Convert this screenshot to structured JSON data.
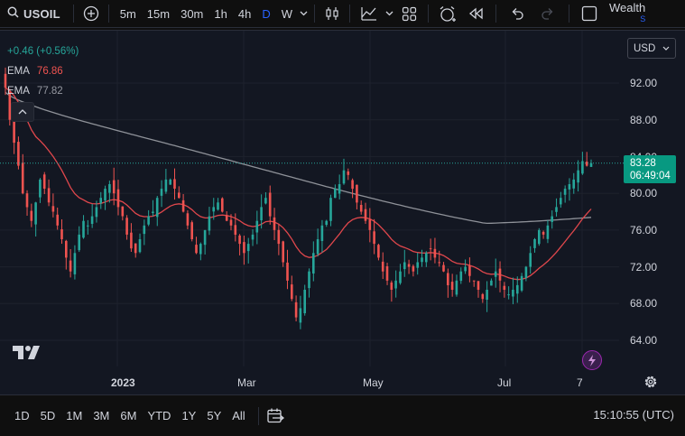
{
  "toolbar": {
    "symbol": "USOIL",
    "timeframes": [
      "5m",
      "15m",
      "30m",
      "1h",
      "4h",
      "D",
      "W"
    ],
    "active_timeframe": "D",
    "account_label": "Wealth",
    "account_sub": "S"
  },
  "legend": {
    "change": "+0.46 (+0.56%)",
    "ema1_label": "EMA",
    "ema1_value": "76.86",
    "ema2_label": "EMA",
    "ema2_value": "77.82"
  },
  "currency": {
    "label": "USD"
  },
  "price_axis": {
    "ticks": [
      "92.00",
      "88.00",
      "84.00",
      "80.00",
      "76.00",
      "72.00",
      "68.00",
      "64.00"
    ],
    "current_price": "83.28",
    "countdown": "06:49:04"
  },
  "time_axis": {
    "ticks": [
      "2023",
      "Mar",
      "May",
      "Jul",
      "7"
    ]
  },
  "bottom": {
    "ranges": [
      "1D",
      "5D",
      "1M",
      "3M",
      "6M",
      "YTD",
      "1Y",
      "5Y",
      "All"
    ],
    "clock": "15:10:55 (UTC)"
  },
  "colors": {
    "up": "#26a69a",
    "down": "#ef5350",
    "ema_fast": "#e0474c",
    "ema_slow": "#8f9299",
    "accent": "#2962ff"
  },
  "chart_data": {
    "type": "candlestick",
    "symbol": "USOIL",
    "interval": "D",
    "y_range": [
      62,
      95
    ],
    "approx_closes": [
      91.5,
      88.0,
      85.5,
      83.0,
      80.0,
      78.5,
      77.0,
      79.0,
      81.5,
      80.5,
      79.0,
      78.0,
      76.5,
      75.0,
      73.0,
      71.5,
      73.5,
      75.5,
      77.0,
      76.5,
      77.5,
      78.5,
      79.5,
      80.5,
      81.0,
      80.0,
      78.5,
      77.5,
      75.5,
      74.0,
      73.5,
      75.0,
      76.5,
      77.5,
      78.0,
      79.5,
      80.5,
      81.5,
      81.5,
      80.5,
      79.5,
      78.0,
      76.5,
      75.0,
      73.5,
      74.5,
      76.0,
      77.5,
      78.5,
      79.0,
      78.0,
      77.0,
      76.5,
      75.5,
      74.5,
      73.5,
      74.5,
      75.5,
      77.0,
      78.5,
      79.5,
      77.5,
      76.0,
      74.5,
      72.5,
      70.5,
      68.5,
      66.5,
      67.5,
      69.5,
      71.5,
      73.5,
      75.0,
      76.5,
      77.0,
      79.5,
      80.5,
      81.0,
      82.5,
      82.0,
      80.5,
      79.0,
      78.0,
      77.0,
      76.0,
      74.5,
      73.0,
      71.5,
      70.5,
      69.5,
      70.5,
      71.5,
      72.5,
      72.0,
      71.5,
      72.5,
      73.0,
      73.5,
      74.0,
      73.0,
      72.5,
      71.5,
      70.0,
      69.5,
      70.5,
      71.5,
      72.0,
      71.0,
      70.5,
      69.5,
      68.5,
      69.5,
      70.5,
      71.5,
      70.5,
      69.5,
      69.0,
      69.5,
      70.0,
      71.0,
      72.0,
      73.5,
      75.0,
      76.0,
      75.5,
      76.5,
      77.5,
      78.5,
      79.5,
      80.5,
      81.0,
      81.5,
      82.5,
      83.5,
      83.0,
      83.28
    ],
    "ema_fast_last": 76.86,
    "ema_slow_last": 77.82,
    "grid": true
  }
}
